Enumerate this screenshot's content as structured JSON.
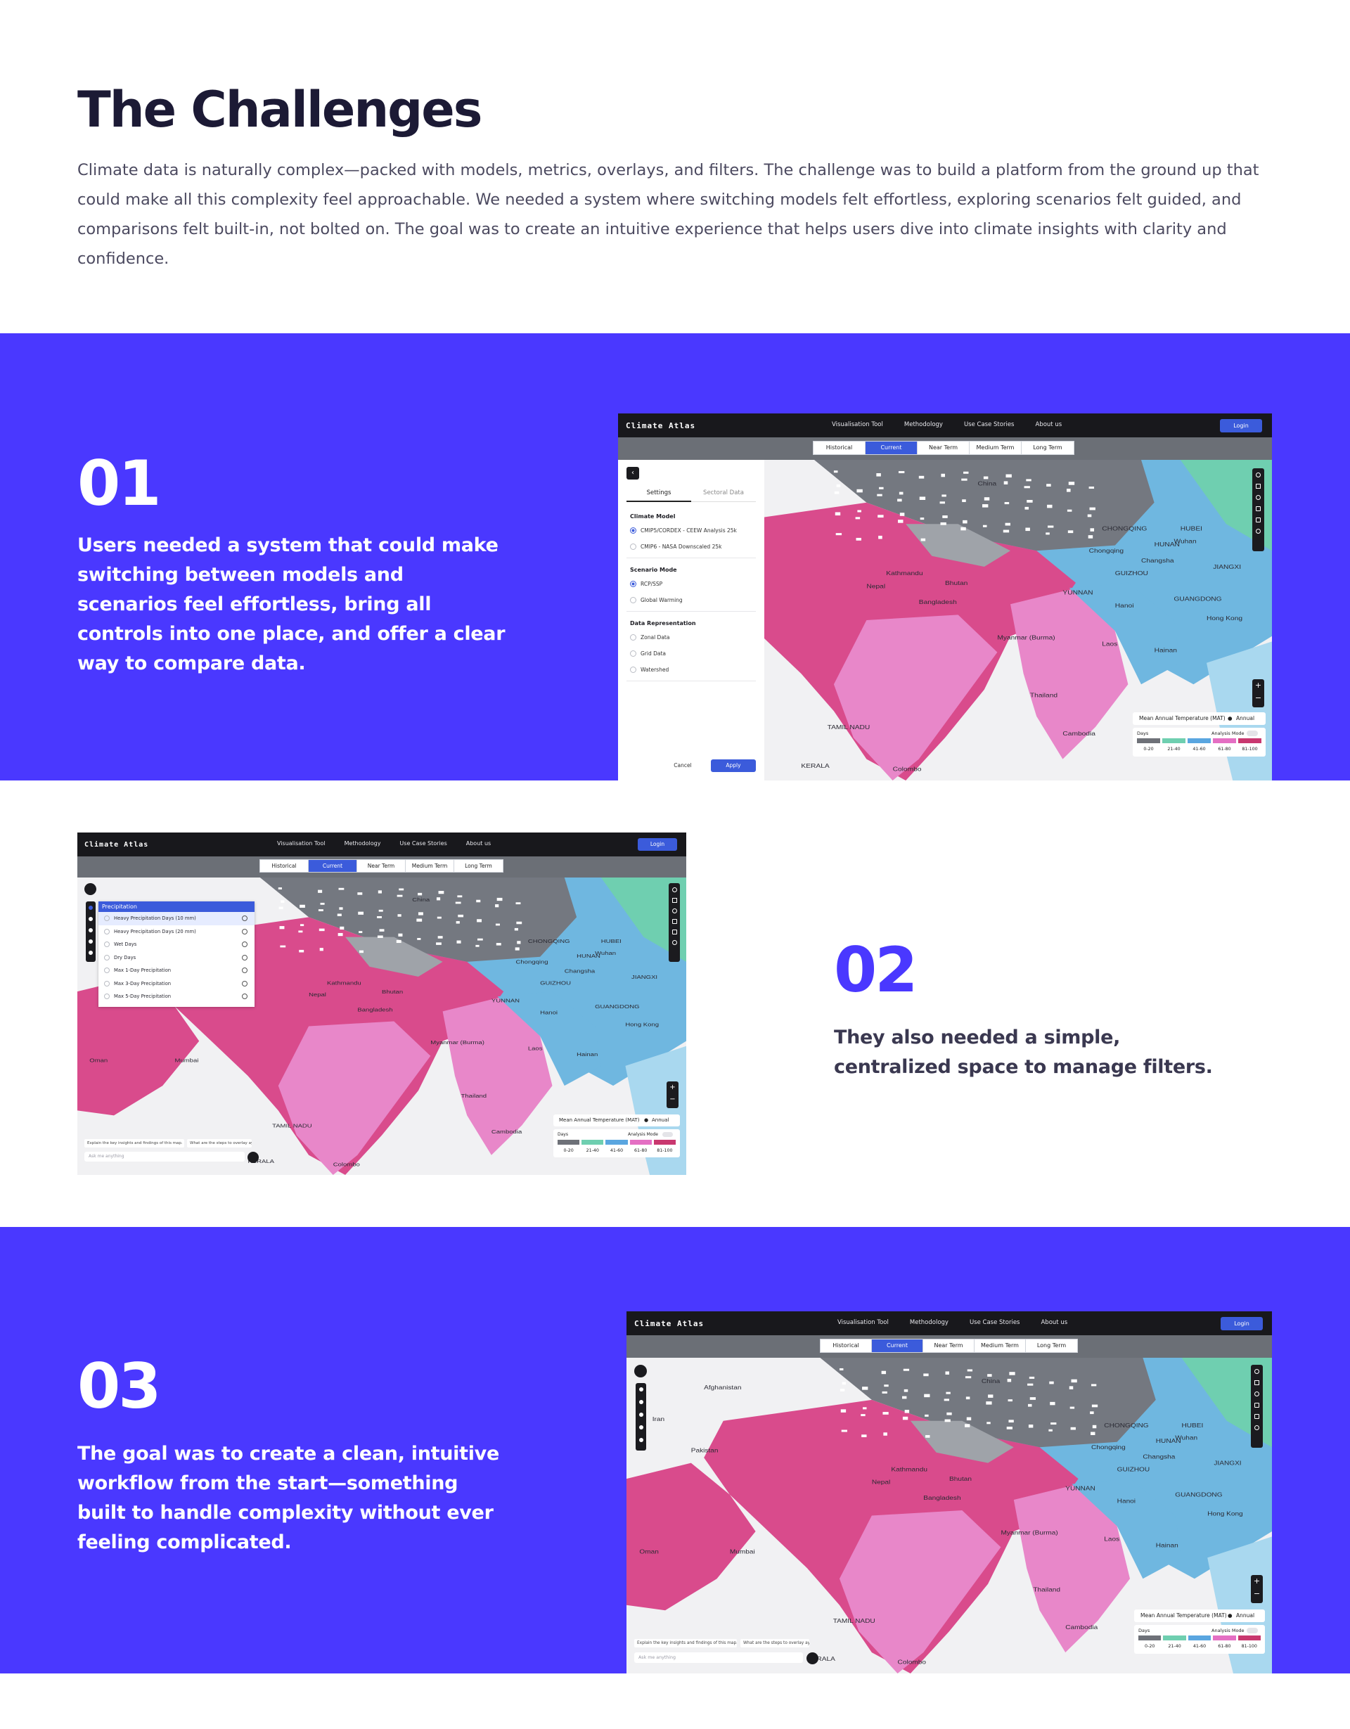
{
  "intro": {
    "title": "The Challenges",
    "body": "Climate data is naturally complex—packed with models, metrics, overlays, and filters. The challenge was to build a platform from the ground up that could make all this complexity feel approachable. We needed a system where switching models felt effortless, exploring scenarios felt guided, and comparisons felt built-in, not bolted on. The goal was to create an intuitive experience that helps users dive into climate insights with clarity and confidence."
  },
  "colors": {
    "brand_purple": "#4a38ff",
    "app_blue": "#3b5bdb",
    "heading": "#1c1a35",
    "topbar": "#18181c",
    "map_pink": "#d94b8c",
    "map_light_pink": "#e887c9",
    "map_gray": "#747880",
    "map_blue": "#6fb7e0",
    "map_teal": "#6fcfb0"
  },
  "app": {
    "brand": "Climate Atlas",
    "nav": [
      "Visualisation Tool",
      "Methodology",
      "Use Case Stories",
      "About us"
    ],
    "login": "Login",
    "tabs": [
      "Historical",
      "Current",
      "Near Term",
      "Medium Term",
      "Long Term"
    ],
    "active_tab": "Current",
    "legend": {
      "title": "Mean Annual Temperature (MAT)",
      "period": "Annual",
      "unit": "Days",
      "mode": "Analysis Mode",
      "ranges": [
        "0-20",
        "21-40",
        "41-60",
        "61-80",
        "81-100"
      ],
      "colors": [
        "#6e7178",
        "#6fcfb0",
        "#5aa6e0",
        "#e46fc3",
        "#c9386f"
      ]
    },
    "zoom_in": "+",
    "zoom_out": "−",
    "map_labels": {
      "l1": "China",
      "l2": "Nepal",
      "l3": "Myanmar (Burma)",
      "l4": "Thailand",
      "l5": "Laos",
      "l6": "Cambodia",
      "l7": "Pakistan",
      "l8": "Afghanistan",
      "l9": "Iran",
      "l10": "Oman",
      "l11": "Hong Kong",
      "l12": "HUNAN",
      "l13": "GUANGDONG",
      "l14": "HUBEI",
      "l15": "Bangladesh",
      "l16": "Kathmandu",
      "l17": "Mumbai",
      "l18": "Colombo",
      "l19": "TAMIL NADU",
      "l20": "KERALA",
      "l21": "CHONGQING",
      "l22": "GUIZHOU",
      "l23": "YUNNAN",
      "l24": "Chongqing",
      "l25": "Changsha",
      "l26": "Wuhan",
      "l27": "JIANGXI",
      "l28": "Bhutan",
      "l29": "Hainan",
      "l30": "Hanoi"
    }
  },
  "section1": {
    "number": "01",
    "text": "Users needed a system that could make switching between models and scenarios feel effortless, bring all controls into one place, and offer a clear way to compare data.",
    "panel": {
      "tabs": [
        "Settings",
        "Sectoral Data"
      ],
      "groups": [
        {
          "title": "Climate Model",
          "options": [
            "CMIP5/CORDEX - CEEW Analysis 25k",
            "CMIP6 - NASA Downscaled 25k"
          ],
          "selected": 0
        },
        {
          "title": "Scenario Mode",
          "options": [
            "RCP/SSP",
            "Global Warming"
          ],
          "selected": 0
        },
        {
          "title": "Data Representation",
          "options": [
            "Zonal Data",
            "Grid Data",
            "Watershed"
          ],
          "selected": -1
        }
      ],
      "cancel": "Cancel",
      "apply": "Apply"
    }
  },
  "section2": {
    "number": "02",
    "text": "They also needed a simple, centralized space to manage filters.",
    "filter": {
      "title": "Precipitation",
      "items": [
        "Heavy Precipitation Days (10 mm)",
        "Heavy Precipitation Days (20 mm)",
        "Wet Days",
        "Dry Days",
        "Max 1-Day Precipitation",
        "Max 3-Day Precipitation",
        "Max 5-Day Precipitation"
      ]
    },
    "chips": [
      "Explain the key insights and findings of this map.",
      "What are the steps to overlay ay"
    ],
    "ask_placeholder": "Ask me anything"
  },
  "section3": {
    "number": "03",
    "text": "The goal was to create a clean, intuitive workflow from the start—something built to handle complexity without ever feeling complicated.",
    "chips": [
      "Explain the key insights and findings of this map.",
      "What are the steps to overlay ay"
    ],
    "ask_placeholder": "Ask me anything"
  }
}
